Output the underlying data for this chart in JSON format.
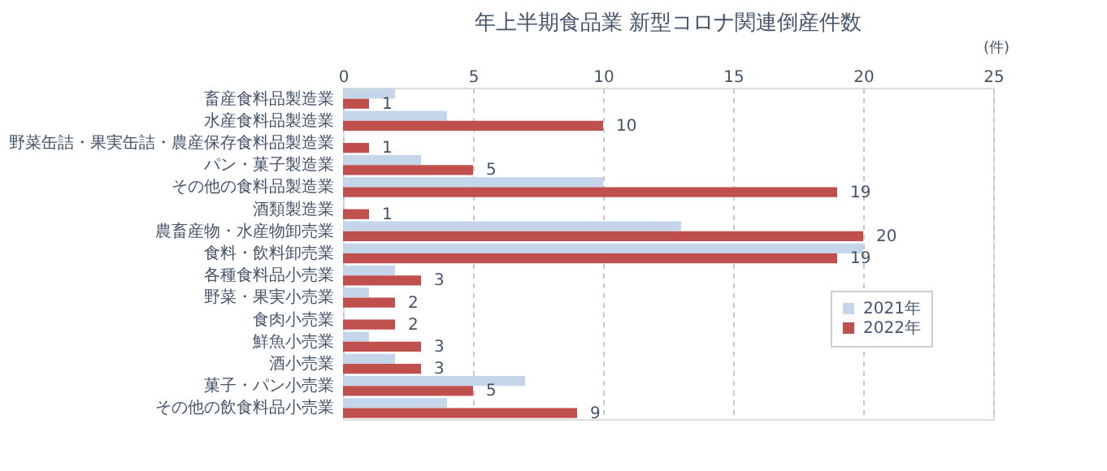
{
  "chart_data": {
    "type": "bar",
    "orientation": "horizontal",
    "title": "年上半期食品業  新型コロナ関連倒産件数",
    "xlabel": "(件)",
    "categories": [
      "畜産食料品製造業",
      "水産食料品製造業",
      "野菜缶詰・果実缶詰・農産保存食料品製造業",
      "パン・菓子製造業",
      "その他の食料品製造業",
      "酒類製造業",
      "農畜産物・水産物卸売業",
      "食料・飲料卸売業",
      "各種食料品小売業",
      "野菜・果実小売業",
      "食肉小売業",
      "鮮魚小売業",
      "酒小売業",
      "菓子・パン小売業",
      "その他の飲食料品小売業"
    ],
    "series": [
      {
        "name": "2021年",
        "color": "#c5d5ea",
        "values": [
          2,
          4,
          0,
          3,
          10,
          0,
          13,
          20,
          2,
          1,
          0,
          1,
          2,
          7,
          4
        ]
      },
      {
        "name": "2022年",
        "color": "#c0504d",
        "values": [
          1,
          10,
          1,
          5,
          19,
          1,
          20,
          19,
          3,
          2,
          2,
          3,
          3,
          5,
          9
        ],
        "value_labels": [
          "1",
          "10",
          "1",
          "5",
          "19",
          "1",
          "20",
          "19",
          "3",
          "2",
          "2",
          "3",
          "3",
          "5",
          "9"
        ]
      }
    ],
    "xlim": [
      0,
      25
    ],
    "xticks": [
      0,
      5,
      10,
      15,
      20,
      25
    ],
    "grid": "x",
    "legend": "bottom right"
  }
}
